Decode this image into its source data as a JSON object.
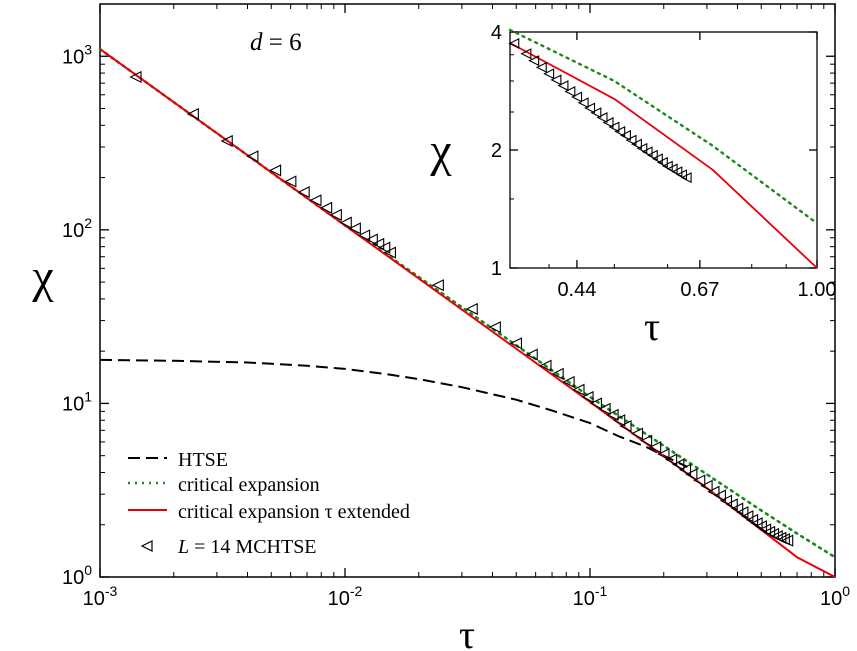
{
  "chart_data": [
    {
      "type": "line",
      "panel": "main",
      "annotation": "d = 6",
      "annotation_var": "d",
      "annotation_rest": " = 6",
      "xlabel": "τ",
      "ylabel": "χ",
      "xscale": "log",
      "yscale": "log",
      "xlim": [
        0.001,
        1.0
      ],
      "ylim": [
        1.0,
        2000.0
      ],
      "grid": false,
      "legend_position": "bottom-left",
      "x_ticks": [
        {
          "value": 0.001,
          "base": "10",
          "exp": "-3"
        },
        {
          "value": 0.01,
          "base": "10",
          "exp": "-2"
        },
        {
          "value": 0.1,
          "base": "10",
          "exp": "-1"
        },
        {
          "value": 1.0,
          "base": "10",
          "exp": "0"
        }
      ],
      "y_ticks": [
        {
          "value": 1.0,
          "base": "10",
          "exp": "0"
        },
        {
          "value": 10.0,
          "base": "10",
          "exp": "1"
        },
        {
          "value": 100.0,
          "base": "10",
          "exp": "2"
        },
        {
          "value": 1000.0,
          "base": "10",
          "exp": "3"
        }
      ],
      "series": [
        {
          "name": "HTSE",
          "style": "dashed",
          "color": "#000000",
          "points": [
            [
              0.001,
              17.8
            ],
            [
              0.002,
              17.6
            ],
            [
              0.004,
              17.2
            ],
            [
              0.007,
              16.5
            ],
            [
              0.01,
              15.8
            ],
            [
              0.015,
              14.7
            ],
            [
              0.02,
              13.8
            ],
            [
              0.03,
              12.4
            ],
            [
              0.05,
              10.5
            ],
            [
              0.07,
              9.1
            ],
            [
              0.1,
              7.7
            ],
            [
              0.13,
              6.5
            ],
            [
              0.17,
              5.6
            ],
            [
              0.2,
              5.0
            ],
            [
              0.25,
              4.3
            ]
          ]
        },
        {
          "name": "critical expansion",
          "style": "dotted",
          "color": "#1a8a1a",
          "points": [
            [
              0.001,
              1100
            ],
            [
              0.01,
              106
            ],
            [
              0.1,
              10.9
            ],
            [
              0.3,
              3.9
            ],
            [
              0.5,
              2.42
            ],
            [
              0.7,
              1.78
            ],
            [
              1.0,
              1.3
            ]
          ]
        },
        {
          "name": "critical expansion τ extended",
          "style": "solid",
          "color": "#e8000b",
          "points": [
            [
              0.001,
              1100
            ],
            [
              0.01,
              106
            ],
            [
              0.1,
              10.2
            ],
            [
              0.3,
              3.25
            ],
            [
              0.5,
              1.87
            ],
            [
              0.7,
              1.3
            ],
            [
              1.0,
              1.0
            ]
          ]
        },
        {
          "name": "L = 14 MCHTSE",
          "style": "markers",
          "marker": "triangle-left",
          "color": "#000000",
          "legend_var": "L",
          "legend_rest": " = 14 MCHTSE",
          "x": [
            0.0014,
            0.0024,
            0.0033,
            0.0042,
            0.0052,
            0.006,
            0.0068,
            0.0076,
            0.0084,
            0.0092,
            0.0101,
            0.011,
            0.012,
            0.0129,
            0.0137,
            0.0145,
            0.0153,
            0.024,
            0.033,
            0.041,
            0.05,
            0.058,
            0.066,
            0.074,
            0.082,
            0.09,
            0.098,
            0.106,
            0.115,
            0.124,
            0.132,
            0.14,
            0.156,
            0.17,
            0.185,
            0.2,
            0.215,
            0.23,
            0.245,
            0.26,
            0.28,
            0.3,
            0.32,
            0.34,
            0.36,
            0.38,
            0.4,
            0.42,
            0.44,
            0.46,
            0.48,
            0.5,
            0.52,
            0.54,
            0.56,
            0.58,
            0.6,
            0.62,
            0.64
          ],
          "y": [
            760,
            465,
            325,
            265,
            220,
            190,
            165,
            148,
            134,
            122,
            110,
            102,
            93,
            88,
            83,
            79,
            74,
            48,
            35,
            27.5,
            22.2,
            19.1,
            16.5,
            14.8,
            13.3,
            12.0,
            10.9,
            10.0,
            9.3,
            8.6,
            8.0,
            7.4,
            6.7,
            6.1,
            5.6,
            5.1,
            4.75,
            4.45,
            4.15,
            3.9,
            3.6,
            3.35,
            3.1,
            2.95,
            2.75,
            2.62,
            2.48,
            2.36,
            2.24,
            2.13,
            2.04,
            1.96,
            1.88,
            1.82,
            1.77,
            1.72,
            1.68,
            1.65,
            1.62
          ]
        }
      ]
    },
    {
      "type": "line",
      "panel": "inset",
      "xlabel": "τ",
      "ylabel": "χ",
      "xscale": "log",
      "yscale": "log",
      "xlim": [
        0.35,
        1.0
      ],
      "ylim": [
        1.0,
        4.0
      ],
      "x_ticks": [
        {
          "value": 0.44,
          "label": "0.44"
        },
        {
          "value": 0.67,
          "label": "0.67"
        },
        {
          "value": 1.0,
          "label": "1.00"
        }
      ],
      "y_ticks": [
        {
          "value": 1.0,
          "label": "1"
        },
        {
          "value": 2.0,
          "label": "2"
        },
        {
          "value": 4.0,
          "label": "4"
        }
      ],
      "series": [
        {
          "name": "critical expansion",
          "style": "dotted",
          "color": "#1a8a1a",
          "points": [
            [
              0.35,
              4.05
            ],
            [
              0.5,
              3.0
            ],
            [
              0.7,
              2.05
            ],
            [
              1.0,
              1.3
            ]
          ]
        },
        {
          "name": "critical expansion τ extended",
          "style": "solid",
          "color": "#e8000b",
          "points": [
            [
              0.35,
              3.75
            ],
            [
              0.5,
              2.7
            ],
            [
              0.7,
              1.78
            ],
            [
              1.0,
              1.0
            ]
          ]
        },
        {
          "name": "L = 14 MCHTSE",
          "style": "markers",
          "marker": "triangle-left",
          "color": "#000000",
          "x": [
            0.355,
            0.37,
            0.38,
            0.39,
            0.4,
            0.41,
            0.42,
            0.43,
            0.44,
            0.45,
            0.46,
            0.47,
            0.48,
            0.49,
            0.5,
            0.51,
            0.52,
            0.53,
            0.54,
            0.55,
            0.56,
            0.57,
            0.58,
            0.59,
            0.6,
            0.61,
            0.62,
            0.63,
            0.64
          ],
          "y": [
            3.74,
            3.52,
            3.38,
            3.25,
            3.13,
            3.02,
            2.92,
            2.82,
            2.73,
            2.64,
            2.56,
            2.49,
            2.42,
            2.35,
            2.29,
            2.23,
            2.18,
            2.12,
            2.07,
            2.02,
            1.98,
            1.94,
            1.9,
            1.86,
            1.82,
            1.79,
            1.76,
            1.73,
            1.7
          ]
        }
      ]
    }
  ]
}
